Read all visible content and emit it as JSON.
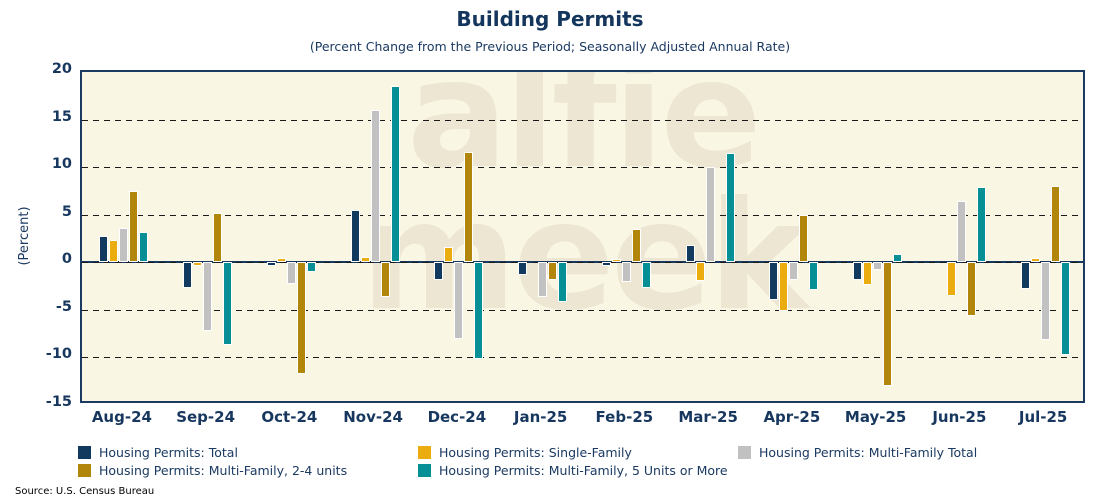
{
  "title": "Building Permits",
  "subtitle": "(Percent Change from the Previous Period; Seasonally Adjusted Annual Rate)",
  "source": "Source: U.S. Census Bureau",
  "watermark": {
    "line1": "alfie",
    "line2": "meek"
  },
  "colors": {
    "total": "#113A5E",
    "single_family": "#EAAC0E",
    "multi_family_total": "#C2C1C1",
    "multi_family_2_4": "#B1860B",
    "multi_family_5plus": "#078F96",
    "text_navy": "#17375E",
    "plot_background": "#FAF6E4"
  },
  "chart_data": {
    "type": "bar",
    "title": "Building Permits",
    "subtitle": "(Percent Change from the Previous Period; Seasonally Adjusted Annual Rate)",
    "xlabel": "",
    "ylabel": "(Percent)",
    "ylim": [
      -15,
      20
    ],
    "yticks": [
      20,
      15,
      10,
      5,
      0,
      -5,
      -10,
      -15
    ],
    "grid": "horizontal-dashed",
    "legend_position": "bottom",
    "categories": [
      "Aug-24",
      "Sep-24",
      "Oct-24",
      "Nov-24",
      "Dec-24",
      "Jan-25",
      "Feb-25",
      "Mar-25",
      "Apr-25",
      "May-25",
      "Jun-25",
      "Jul-25"
    ],
    "series": [
      {
        "name": "Housing Permits: Total",
        "color": "#113A5E",
        "values": [
          2.8,
          -2.7,
          -0.4,
          5.5,
          -1.9,
          -1.3,
          -0.4,
          1.8,
          -4.0,
          -1.9,
          0.0,
          -2.8
        ]
      },
      {
        "name": "Housing Permits: Single-Family",
        "color": "#EAAC0E",
        "values": [
          2.3,
          -0.4,
          0.5,
          0.6,
          1.6,
          0.0,
          0.3,
          -2.0,
          -5.1,
          -2.4,
          -3.5,
          0.4
        ]
      },
      {
        "name": "Housing Permits: Multi-Family Total",
        "color": "#C2C1C1",
        "values": [
          3.6,
          -7.2,
          -2.3,
          16.0,
          -8.1,
          -3.7,
          -2.1,
          10.0,
          -1.9,
          -0.8,
          6.4,
          -8.2
        ]
      },
      {
        "name": "Housing Permits: Multi-Family, 2-4 units",
        "color": "#B1860B",
        "values": [
          7.5,
          5.2,
          -11.7,
          -3.7,
          11.6,
          -1.9,
          3.5,
          0.0,
          5.0,
          -13.0,
          -5.6,
          8.0
        ]
      },
      {
        "name": "Housing Permits: Multi-Family, 5 Units or More",
        "color": "#078F96",
        "values": [
          3.2,
          -8.7,
          -1.0,
          18.5,
          -10.2,
          -4.2,
          -2.7,
          11.5,
          -2.9,
          0.9,
          7.9,
          -9.7
        ]
      }
    ]
  }
}
